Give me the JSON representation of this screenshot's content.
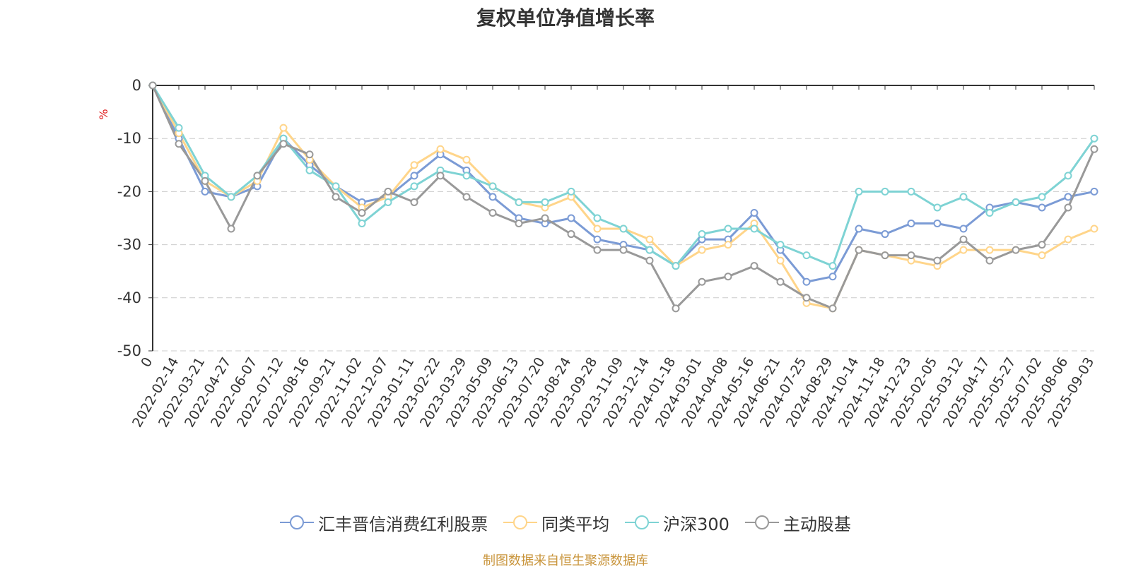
{
  "title": "复权单位净值增长率",
  "source_note": "制图数据来自恒生聚源数据库",
  "chart_data": {
    "type": "line",
    "title": "复权单位净值增长率",
    "ylabel": "%",
    "ylim": [
      -50,
      0
    ],
    "yticks": [
      0,
      -10,
      -20,
      -30,
      -40,
      -50
    ],
    "grid": "dashed horizontal",
    "legend_position": "bottom",
    "x": [
      "0",
      "2022-02-14",
      "2022-03-21",
      "2022-04-27",
      "2022-06-07",
      "2022-07-12",
      "2022-08-16",
      "2022-09-21",
      "2022-11-02",
      "2022-12-07",
      "2023-01-11",
      "2023-02-22",
      "2023-03-29",
      "2023-05-09",
      "2023-06-13",
      "2023-07-20",
      "2023-08-24",
      "2023-09-28",
      "2023-11-09",
      "2023-12-14",
      "2024-01-18",
      "2024-03-01",
      "2024-04-08",
      "2024-05-16",
      "2024-06-21",
      "2024-07-25",
      "2024-08-29",
      "2024-10-14",
      "2024-11-18",
      "2024-12-23",
      "2025-02-05",
      "2025-03-12",
      "2025-04-17",
      "2025-05-27",
      "2025-07-02",
      "2025-08-06",
      "2025-09-03"
    ],
    "series": [
      {
        "name": "汇丰晋信消费红利股票",
        "color": "#7b9bd5",
        "values": [
          0,
          -10,
          -20,
          -21,
          -19,
          -10,
          -15,
          -19,
          -22,
          -21,
          -17,
          -13,
          -16,
          -21,
          -25,
          -26,
          -25,
          -29,
          -30,
          -31,
          -34,
          -29,
          -29,
          -24,
          -31,
          -37,
          -36,
          -27,
          -28,
          -26,
          -26,
          -27,
          -23,
          -22,
          -23,
          -21,
          -20
        ]
      },
      {
        "name": "同类平均",
        "color": "#ffd58a",
        "values": [
          0,
          -9,
          -18,
          -21,
          -18,
          -8,
          -14,
          -19,
          -23,
          -21,
          -15,
          -12,
          -14,
          -19,
          -22,
          -23,
          -21,
          -27,
          -27,
          -29,
          -34,
          -31,
          -30,
          -26,
          -33,
          -41,
          -42,
          -31,
          -32,
          -33,
          -34,
          -31,
          -31,
          -31,
          -32,
          -29,
          -27
        ]
      },
      {
        "name": "沪深300",
        "color": "#7ed3d4",
        "values": [
          0,
          -8,
          -17,
          -21,
          -17,
          -10,
          -16,
          -19,
          -26,
          -22,
          -19,
          -16,
          -17,
          -19,
          -22,
          -22,
          -20,
          -25,
          -27,
          -31,
          -34,
          -28,
          -27,
          -27,
          -30,
          -32,
          -34,
          -20,
          -20,
          -20,
          -23,
          -21,
          -24,
          -22,
          -21,
          -17,
          -10
        ]
      },
      {
        "name": "主动股基",
        "color": "#999999",
        "values": [
          0,
          -11,
          -18,
          -27,
          -17,
          -11,
          -13,
          -21,
          -24,
          -20,
          -22,
          -17,
          -21,
          -24,
          -26,
          -25,
          -28,
          -31,
          -31,
          -33,
          -42,
          -37,
          -36,
          -34,
          -37,
          -40,
          -42,
          -31,
          -32,
          -32,
          -33,
          -29,
          -33,
          -31,
          -30,
          -23,
          -12
        ]
      }
    ]
  },
  "legend": {
    "items": [
      {
        "label": "汇丰晋信消费红利股票",
        "color": "#7b9bd5"
      },
      {
        "label": "同类平均",
        "color": "#ffd58a"
      },
      {
        "label": "沪深300",
        "color": "#7ed3d4"
      },
      {
        "label": "主动股基",
        "color": "#999999"
      }
    ]
  }
}
